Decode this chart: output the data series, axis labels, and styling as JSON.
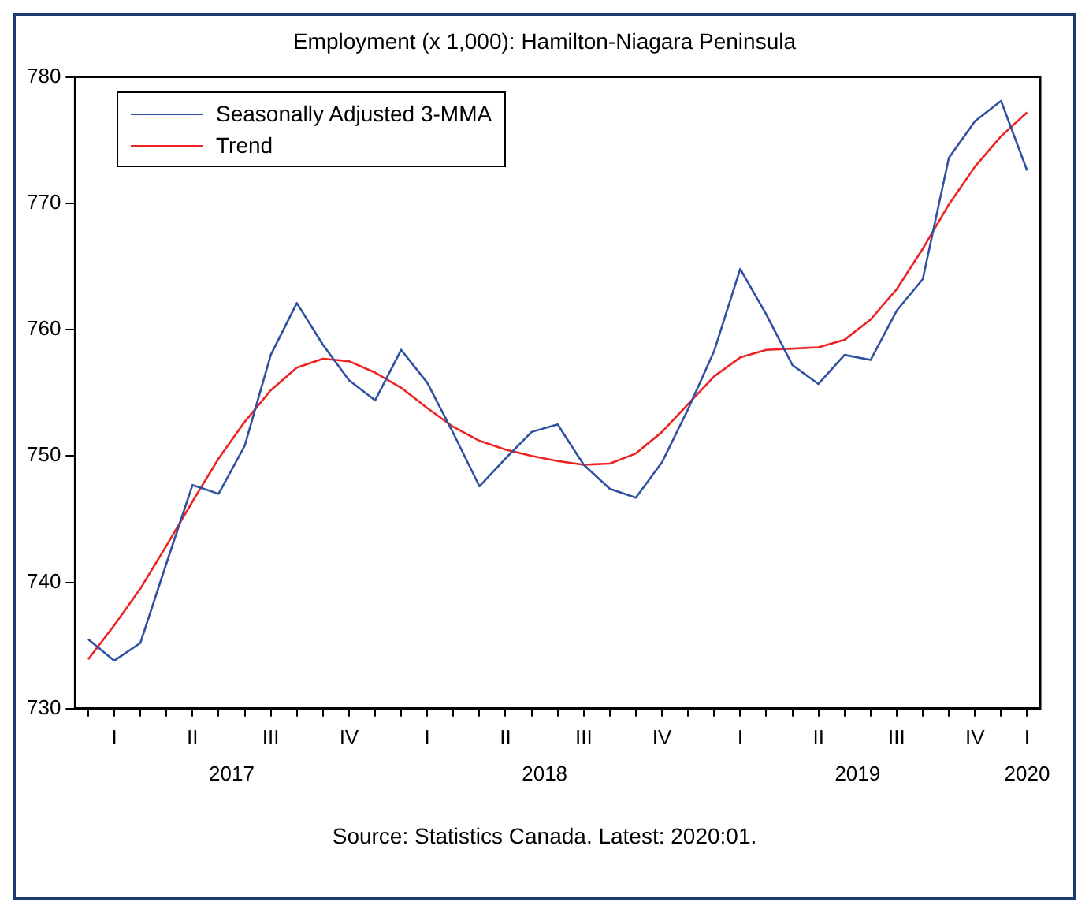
{
  "chart_data": {
    "type": "line",
    "title": "Employment (x 1,000): Hamilton-Niagara Peninsula",
    "categories": [
      null,
      "I",
      null,
      null,
      "II",
      null,
      null,
      "III",
      null,
      null,
      "IV",
      null,
      null,
      "I",
      null,
      null,
      "II",
      null,
      null,
      "III",
      null,
      null,
      "IV",
      null,
      null,
      "I",
      null,
      null,
      "II",
      null,
      null,
      "III",
      null,
      null,
      "IV",
      null,
      "I"
    ],
    "series": [
      {
        "name": "Seasonally Adjusted 3-MMA",
        "color": "#3050a0",
        "values": [
          735.5,
          733.8,
          735.2,
          741.5,
          747.7,
          747.0,
          750.8,
          758.0,
          762.1,
          758.8,
          756.0,
          754.4,
          758.4,
          755.8,
          751.8,
          747.6,
          749.8,
          751.9,
          752.5,
          749.3,
          747.4,
          746.7,
          749.5,
          753.7,
          758.3,
          764.8,
          761.2,
          757.2,
          755.7,
          758.0,
          757.6,
          761.5,
          764.0,
          773.6,
          776.5,
          778.1,
          772.6
        ]
      },
      {
        "name": "Trend",
        "color": "#ee2222",
        "values": [
          733.9,
          736.6,
          739.5,
          742.9,
          746.4,
          749.8,
          752.7,
          755.2,
          757.0,
          757.7,
          757.5,
          756.6,
          755.4,
          753.8,
          752.3,
          751.2,
          750.5,
          750.0,
          749.6,
          749.3,
          749.4,
          750.2,
          751.9,
          754.1,
          756.3,
          757.8,
          758.4,
          758.5,
          758.6,
          759.2,
          760.8,
          763.2,
          766.4,
          769.9,
          772.9,
          775.3,
          777.2
        ]
      }
    ],
    "ylim": [
      730,
      780
    ],
    "yticks": [
      730,
      740,
      750,
      760,
      770,
      780
    ],
    "grid": false,
    "legend": "top left",
    "marker": "none",
    "line_style": "solid",
    "annotations": [
      "2017",
      "2018",
      "2019",
      "2020",
      "Source: Statistics Canada. Latest: 2020:01."
    ]
  }
}
